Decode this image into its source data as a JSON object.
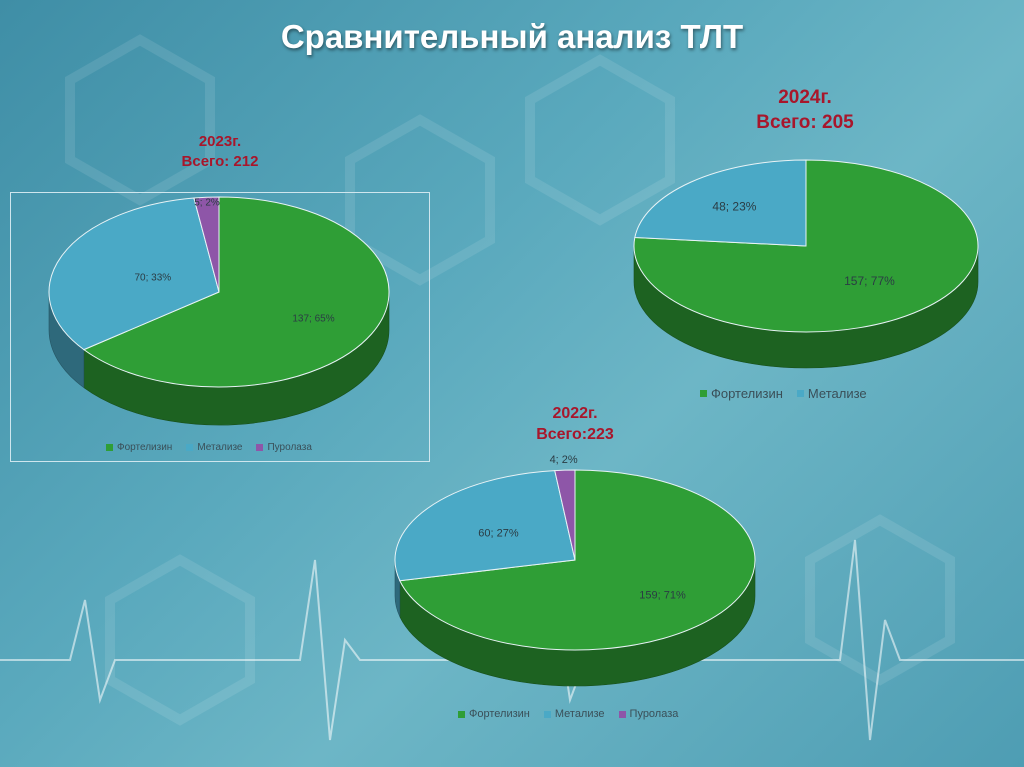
{
  "title": "Сравнительный анализ ТЛТ",
  "colors": {
    "Фортелизин": "#2f9e36",
    "Метализе": "#4aa9c6",
    "Пуролаза": "#8e56a8"
  },
  "charts": [
    {
      "id": "2023",
      "heading_line1": "2023г.",
      "heading_line2": "Всего: 212",
      "legend": [
        "Фортелизин",
        "Метализе",
        "Пуролаза"
      ]
    },
    {
      "id": "2024",
      "heading_line1": "2024г.",
      "heading_line2": "Всего: 205",
      "legend": [
        "Фортелизин",
        "Метализе"
      ]
    },
    {
      "id": "2022",
      "heading_line1": "2022г.",
      "heading_line2": "Всего:223",
      "legend": [
        "Фортелизин",
        "Метализе",
        "Пуролаза"
      ]
    }
  ],
  "chart_data": [
    {
      "type": "pie",
      "title": "2023г.",
      "total": 212,
      "categories": [
        "Фортелизин",
        "Метализе",
        "Пуролаза"
      ],
      "values": [
        137,
        70,
        5
      ],
      "percents": [
        65,
        33,
        2
      ],
      "labels": [
        "137; 65%",
        "70; 33%",
        "5; 2%"
      ]
    },
    {
      "type": "pie",
      "title": "2024г.",
      "total": 205,
      "categories": [
        "Фортелизин",
        "Метализе"
      ],
      "values": [
        157,
        48
      ],
      "percents": [
        77,
        23
      ],
      "labels": [
        "157; 77%",
        "48; 23%"
      ]
    },
    {
      "type": "pie",
      "title": "2022г.",
      "total": 223,
      "categories": [
        "Фортелизин",
        "Метализе",
        "Пуролаза"
      ],
      "values": [
        159,
        60,
        4
      ],
      "percents": [
        71,
        27,
        2
      ],
      "labels": [
        "159; 71%",
        "60; 27%",
        "4; 2%"
      ]
    }
  ]
}
